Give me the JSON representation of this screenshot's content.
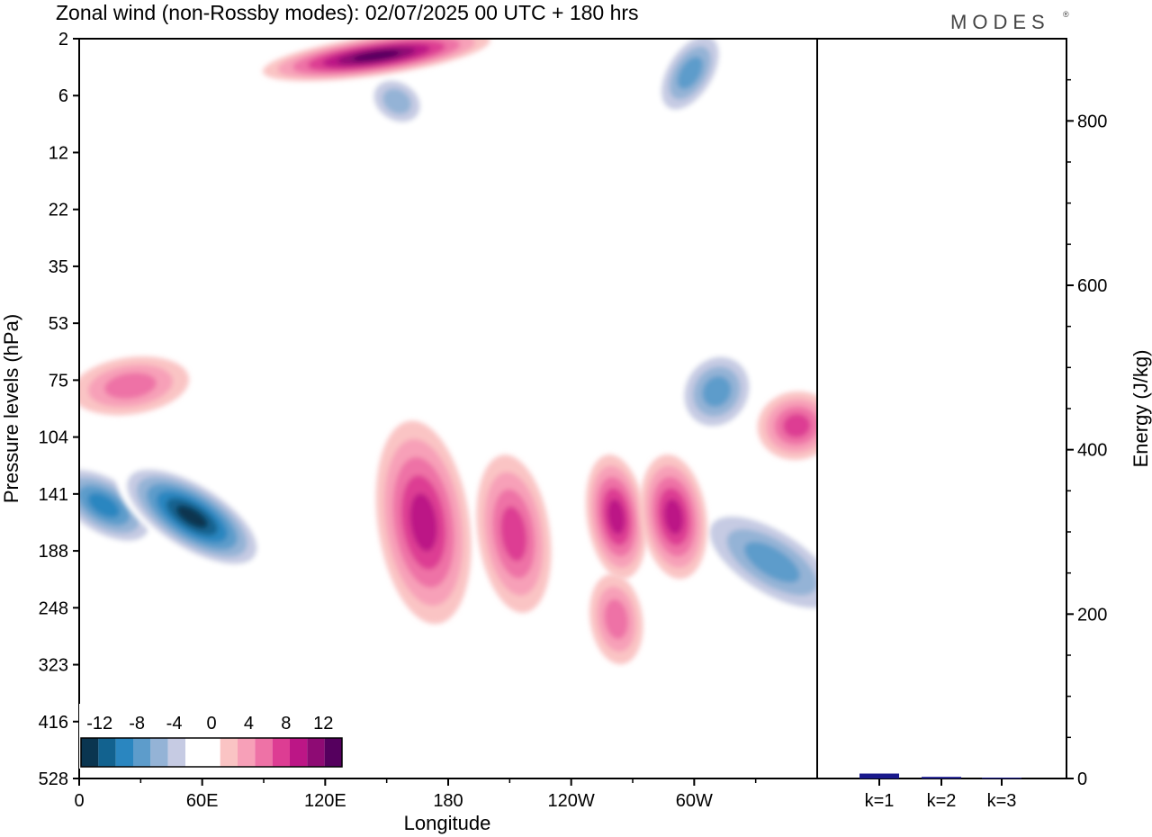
{
  "title": "Zonal wind (non-Rossby modes):  02/07/2025  00 UTC  + 180 hrs",
  "brand": "MODES",
  "brand_mark": "®",
  "chart_data": [
    {
      "type": "heatmap",
      "title": "Zonal wind (non-Rossby modes):  02/07/2025  00 UTC  + 180 hrs",
      "xlabel": "Longitude",
      "ylabel": "Pressure levels (hPa)",
      "x_ticks": [
        "0",
        "60E",
        "120E",
        "180",
        "120W",
        "60W"
      ],
      "x_tick_values_deg": [
        0,
        60,
        120,
        180,
        240,
        300
      ],
      "xlim_deg": [
        0,
        360
      ],
      "y_ticks": [
        "2",
        "6",
        "12",
        "22",
        "35",
        "53",
        "75",
        "104",
        "141",
        "188",
        "248",
        "323",
        "416",
        "528"
      ],
      "colorbar": {
        "labels": [
          "-12",
          "-8",
          "-4",
          "0",
          "4",
          "8",
          "12"
        ],
        "levels": [
          -14,
          -12,
          -10,
          -8,
          -6,
          -4,
          -2,
          2,
          4,
          6,
          8,
          10,
          12,
          14
        ],
        "colors": [
          "#0a3550",
          "#12628f",
          "#2a86c0",
          "#5d9ccb",
          "#94b3d6",
          "#c6cbe3",
          "#ffffff",
          "#ffffff",
          "#fac4c4",
          "#f7a0b8",
          "#ee72a6",
          "#dd3d93",
          "#bc1686",
          "#8e0b74",
          "#55005e"
        ]
      },
      "features": [
        {
          "kind": "negative",
          "lon": 12,
          "level_index": 8.2,
          "lon_width": 10,
          "level_width": 1.1,
          "value": -10
        },
        {
          "kind": "negative",
          "lon": 55,
          "level_index": 8.4,
          "lon_width": 11,
          "level_width": 1.5,
          "value": -14
        },
        {
          "kind": "negative",
          "lon": 338,
          "level_index": 9.2,
          "lon_width": 12,
          "level_width": 1.6,
          "value": -8
        },
        {
          "kind": "negative",
          "lon": 311,
          "level_index": 6.2,
          "lon_width": 14,
          "level_width": 0.7,
          "value": -8
        },
        {
          "kind": "negative",
          "lon": 298,
          "level_index": 0.6,
          "lon_width": 16,
          "level_width": 0.5,
          "value": -8
        },
        {
          "kind": "negative",
          "lon": 155,
          "level_index": 1.1,
          "lon_width": 8,
          "level_width": 0.6,
          "value": -6
        },
        {
          "kind": "positive",
          "lon": 145,
          "level_index": 0.3,
          "lon_width": 35,
          "level_width": 0.35,
          "value": 14
        },
        {
          "kind": "positive",
          "lon": 168,
          "level_index": 8.5,
          "lon_width": 14,
          "level_width": 1.8,
          "value": 10
        },
        {
          "kind": "positive",
          "lon": 212,
          "level_index": 8.7,
          "lon_width": 11,
          "level_width": 1.4,
          "value": 8
        },
        {
          "kind": "positive",
          "lon": 262,
          "level_index": 8.4,
          "lon_width": 9,
          "level_width": 1.1,
          "value": 10
        },
        {
          "kind": "positive",
          "lon": 290,
          "level_index": 8.4,
          "lon_width": 10,
          "level_width": 1.1,
          "value": 10
        },
        {
          "kind": "positive",
          "lon": 350,
          "level_index": 6.8,
          "lon_width": 12,
          "level_width": 0.6,
          "value": 8
        },
        {
          "kind": "positive",
          "lon": 25,
          "level_index": 6.1,
          "lon_width": 18,
          "level_width": 0.5,
          "value": 6
        },
        {
          "kind": "positive",
          "lon": 262,
          "level_index": 10.2,
          "lon_width": 8,
          "level_width": 0.8,
          "value": 6
        }
      ]
    },
    {
      "type": "bar",
      "ylabel": "Energy (J/kg)",
      "categories": [
        "k=1",
        "k=2",
        "k=3"
      ],
      "values": [
        6,
        2,
        1
      ],
      "ylim": [
        0,
        900
      ],
      "y_ticks": [
        "0",
        "200",
        "400",
        "600",
        "800"
      ],
      "y_tick_values": [
        0,
        200,
        400,
        600,
        800
      ],
      "bar_color": "#1a1a8c"
    }
  ]
}
